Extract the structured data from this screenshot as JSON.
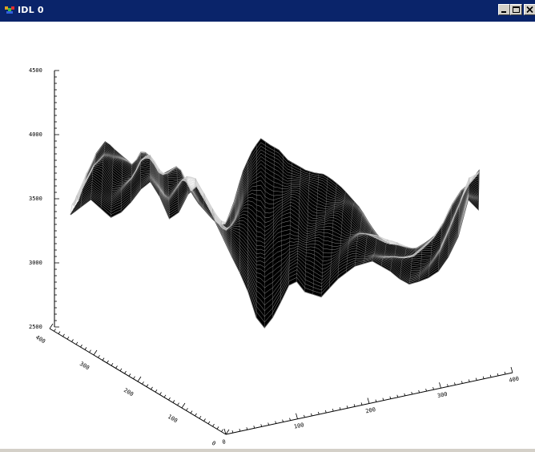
{
  "window": {
    "title": "IDL 0",
    "controls": [
      "minimize",
      "maximize",
      "close"
    ]
  },
  "chart_data": {
    "type": "surface",
    "z_axis": {
      "range": [
        2500,
        4500
      ],
      "major_ticks": [
        "2500",
        "3000",
        "3500",
        "4000",
        "4500"
      ]
    },
    "x_axis": {
      "major_ticks": [
        "0",
        "100",
        "200",
        "300",
        "400"
      ]
    },
    "y_axis": {
      "major_ticks": [
        "0",
        "100",
        "200",
        "300",
        "400"
      ]
    },
    "front_ridge_z": [
      3500,
      3560,
      3620,
      3550,
      3480,
      3520,
      3600,
      3700,
      3760,
      3640,
      3470,
      3520,
      3660,
      3720,
      3600,
      3460,
      3320,
      3180,
      3050,
      2900,
      2700,
      2620,
      2700,
      2820,
      2950,
      2980,
      2900,
      2880,
      2860,
      2930,
      3000,
      3050,
      3100,
      3120,
      3140,
      3100,
      3060,
      3000,
      2960,
      2980,
      3010,
      3060,
      3170,
      3330,
      3620,
      3540
    ],
    "back_ridge_z": [
      3480,
      3700,
      3860,
      3950,
      3880,
      3820,
      3760,
      3880,
      3820,
      3680,
      3720,
      3760,
      3600,
      3480,
      3400,
      3320,
      3280,
      3450,
      3700,
      3860,
      3970,
      3920,
      3880,
      3800,
      3760,
      3720,
      3700,
      3690,
      3640,
      3580,
      3500,
      3420,
      3300,
      3200,
      3150,
      3140,
      3120,
      3110,
      3150,
      3200,
      3300,
      3450,
      3560,
      3620,
      3720
    ]
  },
  "colors": {
    "titlebar": "#0a246a",
    "plot_background": "#ffffff",
    "mesh": "#000000"
  }
}
